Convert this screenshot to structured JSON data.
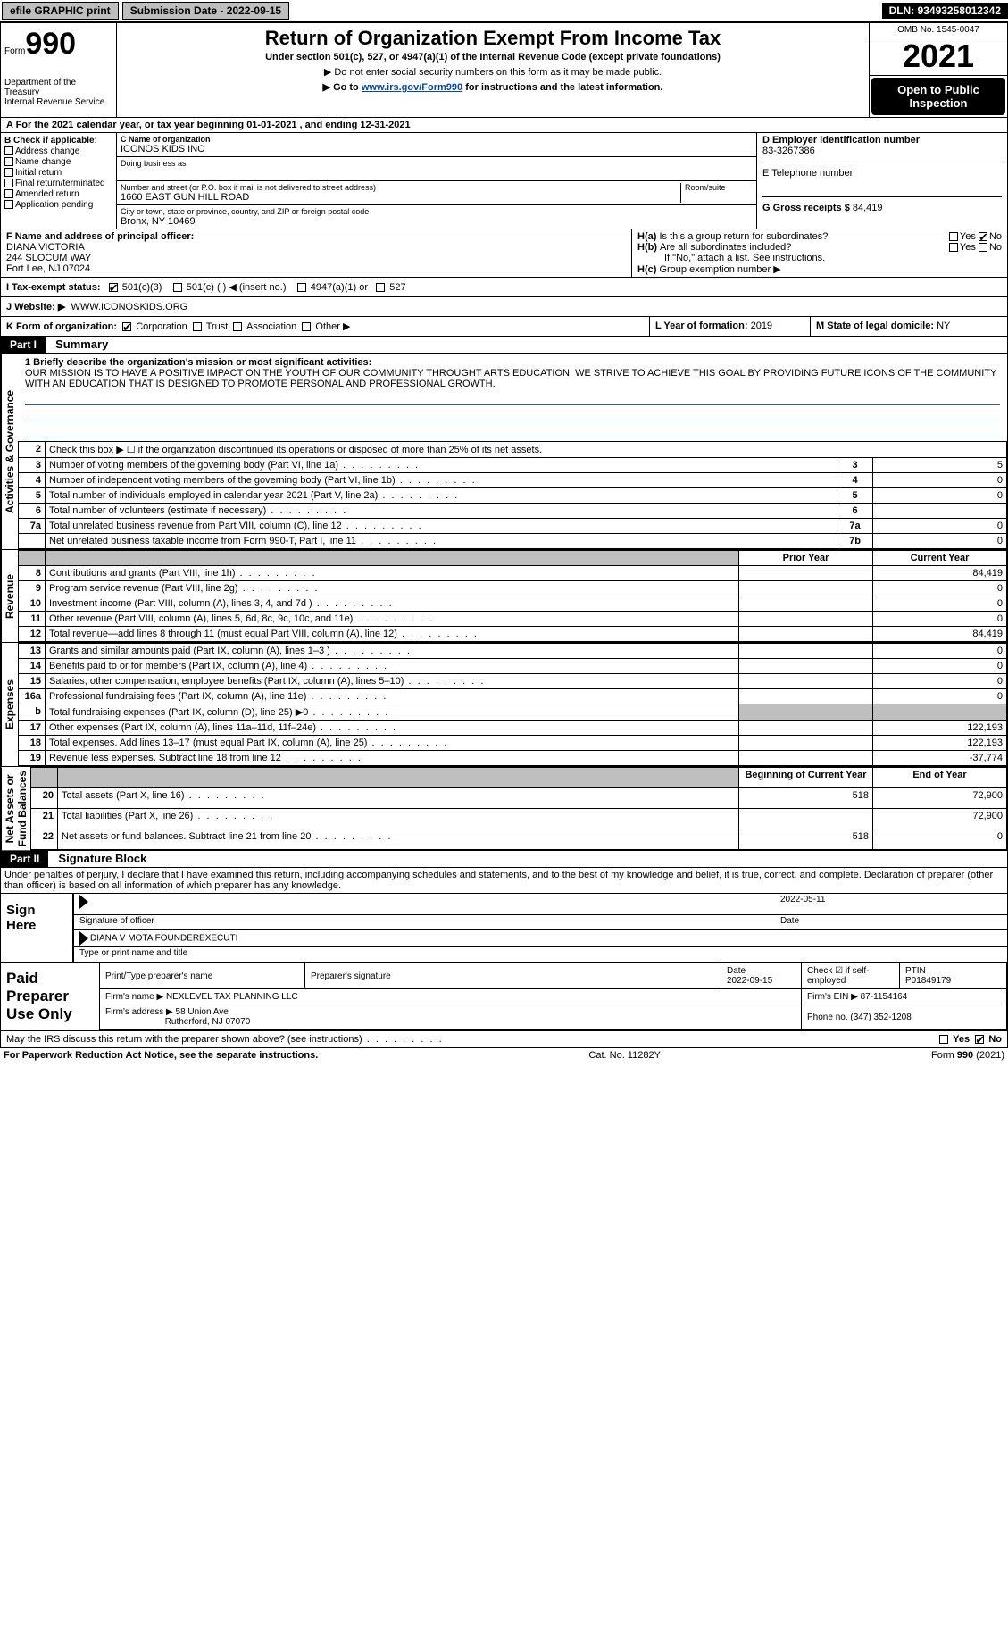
{
  "topbar": {
    "efile": "efile GRAPHIC print",
    "submission_label": "Submission Date - 2022-09-15",
    "dln": "DLN: 93493258012342"
  },
  "header": {
    "form_word": "Form",
    "form_num": "990",
    "title": "Return of Organization Exempt From Income Tax",
    "sub1": "Under section 501(c), 527, or 4947(a)(1) of the Internal Revenue Code (except private foundations)",
    "sub2a": "▶ Do not enter social security numbers on this form as it may be made public.",
    "sub2b_pre": "▶ Go to ",
    "sub2b_link": "www.irs.gov/Form990",
    "sub2b_post": " for instructions and the latest information.",
    "dept": "Department of the Treasury\nInternal Revenue Service",
    "omb": "OMB No. 1545-0047",
    "year": "2021",
    "otp": "Open to Public Inspection"
  },
  "a_line": "A For the 2021 calendar year, or tax year beginning 01-01-2021    , and ending 12-31-2021",
  "b": {
    "label": "B Check if applicable:",
    "opts": [
      "Address change",
      "Name change",
      "Initial return",
      "Final return/terminated",
      "Amended return",
      "Application pending"
    ]
  },
  "c": {
    "name_lbl": "C Name of organization",
    "name": "ICONOS KIDS INC",
    "dba_lbl": "Doing business as",
    "addr_lbl": "Number and street (or P.O. box if mail is not delivered to street address)",
    "room_lbl": "Room/suite",
    "addr": "1660 EAST GUN HILL ROAD",
    "city_lbl": "City or town, state or province, country, and ZIP or foreign postal code",
    "city": "Bronx, NY  10469"
  },
  "d": {
    "lbl": "D Employer identification number",
    "val": "83-3267386"
  },
  "e": {
    "lbl": "E Telephone number",
    "val": ""
  },
  "g": {
    "lbl": "G Gross receipts $",
    "val": "84,419"
  },
  "f": {
    "lbl": "F  Name and address of principal officer:",
    "name": "DIANA VICTORIA",
    "addr1": "244 SLOCUM WAY",
    "addr2": "Fort Lee, NJ  07024"
  },
  "h": {
    "a": "Is this a group return for subordinates?",
    "b": "Are all subordinates included?",
    "b_note": "If \"No,\" attach a list. See instructions.",
    "c": "Group exemption number ▶",
    "yes": "Yes",
    "no": "No"
  },
  "i": {
    "lbl": "I   Tax-exempt status:",
    "opts": [
      "501(c)(3)",
      "501(c) (   ) ◀ (insert no.)",
      "4947(a)(1) or",
      "527"
    ]
  },
  "j": {
    "lbl": "J   Website: ▶",
    "val": "WWW.ICONOSKIDS.ORG"
  },
  "k": {
    "lbl": "K Form of organization:",
    "opts": [
      "Corporation",
      "Trust",
      "Association",
      "Other ▶"
    ]
  },
  "l": {
    "lbl": "L Year of formation:",
    "val": "2019"
  },
  "m": {
    "lbl": "M State of legal domicile:",
    "val": "NY"
  },
  "part1": {
    "hdr": "Part I",
    "title": "Summary"
  },
  "mission": {
    "prompt": "1  Briefly describe the organization's mission or most significant activities:",
    "text": "OUR MISSION IS TO HAVE A POSITIVE IMPACT ON THE YOUTH OF OUR COMMUNITY THROUGHT ARTS EDUCATION. WE STRIVE TO ACHIEVE THIS GOAL BY PROVIDING FUTURE ICONS OF THE COMMUNITY WITH AN EDUCATION THAT IS DESIGNED TO PROMOTE PERSONAL AND PROFESSIONAL GROWTH."
  },
  "gov_rows": [
    {
      "n": "2",
      "t": "Check this box ▶ ☐  if the organization discontinued its operations or disposed of more than 25% of its net assets.",
      "box": "",
      "v": ""
    },
    {
      "n": "3",
      "t": "Number of voting members of the governing body (Part VI, line 1a)",
      "box": "3",
      "v": "5"
    },
    {
      "n": "4",
      "t": "Number of independent voting members of the governing body (Part VI, line 1b)",
      "box": "4",
      "v": "0"
    },
    {
      "n": "5",
      "t": "Total number of individuals employed in calendar year 2021 (Part V, line 2a)",
      "box": "5",
      "v": "0"
    },
    {
      "n": "6",
      "t": "Total number of volunteers (estimate if necessary)",
      "box": "6",
      "v": ""
    },
    {
      "n": "7a",
      "t": "Total unrelated business revenue from Part VIII, column (C), line 12",
      "box": "7a",
      "v": "0"
    },
    {
      "n": "",
      "t": "Net unrelated business taxable income from Form 990-T, Part I, line 11",
      "box": "7b",
      "v": "0"
    }
  ],
  "py_cy_hdr": {
    "py": "Prior Year",
    "cy": "Current Year"
  },
  "revenue_rows": [
    {
      "n": "8",
      "t": "Contributions and grants (Part VIII, line 1h)",
      "py": "",
      "cy": "84,419"
    },
    {
      "n": "9",
      "t": "Program service revenue (Part VIII, line 2g)",
      "py": "",
      "cy": "0"
    },
    {
      "n": "10",
      "t": "Investment income (Part VIII, column (A), lines 3, 4, and 7d )",
      "py": "",
      "cy": "0"
    },
    {
      "n": "11",
      "t": "Other revenue (Part VIII, column (A), lines 5, 6d, 8c, 9c, 10c, and 11e)",
      "py": "",
      "cy": "0"
    },
    {
      "n": "12",
      "t": "Total revenue—add lines 8 through 11 (must equal Part VIII, column (A), line 12)",
      "py": "",
      "cy": "84,419"
    }
  ],
  "expense_rows": [
    {
      "n": "13",
      "t": "Grants and similar amounts paid (Part IX, column (A), lines 1–3 )",
      "py": "",
      "cy": "0"
    },
    {
      "n": "14",
      "t": "Benefits paid to or for members (Part IX, column (A), line 4)",
      "py": "",
      "cy": "0"
    },
    {
      "n": "15",
      "t": "Salaries, other compensation, employee benefits (Part IX, column (A), lines 5–10)",
      "py": "",
      "cy": "0"
    },
    {
      "n": "16a",
      "t": "Professional fundraising fees (Part IX, column (A), line 11e)",
      "py": "",
      "cy": "0"
    },
    {
      "n": "b",
      "t": "Total fundraising expenses (Part IX, column (D), line 25) ▶0",
      "py": "GREY",
      "cy": "GREY"
    },
    {
      "n": "17",
      "t": "Other expenses (Part IX, column (A), lines 11a–11d, 11f–24e)",
      "py": "",
      "cy": "122,193"
    },
    {
      "n": "18",
      "t": "Total expenses. Add lines 13–17 (must equal Part IX, column (A), line 25)",
      "py": "",
      "cy": "122,193"
    },
    {
      "n": "19",
      "t": "Revenue less expenses. Subtract line 18 from line 12",
      "py": "",
      "cy": "-37,774"
    }
  ],
  "na_hdr": {
    "b": "Beginning of Current Year",
    "e": "End of Year"
  },
  "na_rows": [
    {
      "n": "20",
      "t": "Total assets (Part X, line 16)",
      "b": "518",
      "e": "72,900"
    },
    {
      "n": "21",
      "t": "Total liabilities (Part X, line 26)",
      "b": "",
      "e": "72,900"
    },
    {
      "n": "22",
      "t": "Net assets or fund balances. Subtract line 21 from line 20",
      "b": "518",
      "e": "0"
    }
  ],
  "tabs": {
    "gov": "Activities & Governance",
    "rev": "Revenue",
    "exp": "Expenses",
    "na": "Net Assets or\nFund Balances"
  },
  "part2": {
    "hdr": "Part II",
    "title": "Signature Block"
  },
  "penalty": "Under penalties of perjury, I declare that I have examined this return, including accompanying schedules and statements, and to the best of my knowledge and belief, it is true, correct, and complete. Declaration of preparer (other than officer) is based on all information of which preparer has any knowledge.",
  "sign": {
    "here": "Sign Here",
    "sig_officer": "Signature of officer",
    "date": "Date",
    "date_val": "2022-05-11",
    "name": "DIANA V MOTA  FOUNDEREXECUTI",
    "name_lbl": "Type or print name and title"
  },
  "paid": {
    "hdr": "Paid Preparer Use Only",
    "r1": {
      "a": "Print/Type preparer's name",
      "b": "Preparer's signature",
      "c": "Date",
      "c_val": "2022-09-15",
      "d": "Check ☑ if self-employed",
      "e": "PTIN",
      "e_val": "P01849179"
    },
    "r2": {
      "a": "Firm's name    ▶",
      "a_val": "NEXLEVEL TAX PLANNING LLC",
      "b": "Firm's EIN ▶",
      "b_val": "87-1154164"
    },
    "r3": {
      "a": "Firm's address ▶",
      "a_val": "58 Union Ave",
      "a_val2": "Rutherford, NJ  07070",
      "b": "Phone no.",
      "b_val": "(347) 352-1208"
    }
  },
  "may_discuss": "May the IRS discuss this return with the preparer shown above? (see instructions)",
  "footer": {
    "l": "For Paperwork Reduction Act Notice, see the separate instructions.",
    "m": "Cat. No. 11282Y",
    "r": "Form 990 (2021)"
  },
  "colors": {
    "link": "#0645AD",
    "grey": "#bfbfbf",
    "line": "#2a5db0"
  }
}
